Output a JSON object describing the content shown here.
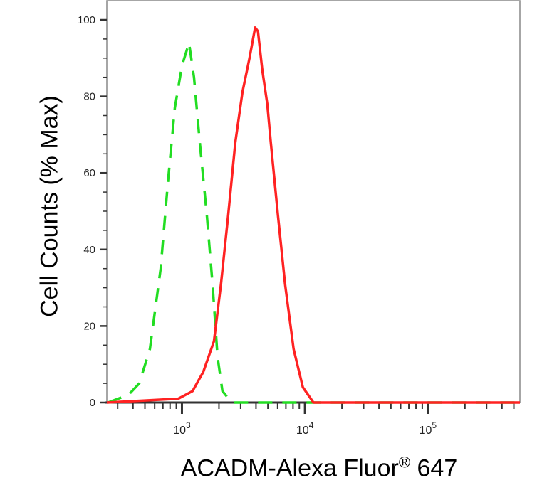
{
  "chart_data": {
    "type": "line",
    "title": "",
    "xlabel_main": "ACADM-Alexa Fluor",
    "xlabel_sup": "®",
    "xlabel_end": " 647",
    "ylabel": "Cell Counts (% Max)",
    "x_scale": "log",
    "xlim": [
      245,
      560000
    ],
    "ylim": [
      0,
      100
    ],
    "y_ticks": [
      0,
      20,
      40,
      60,
      80,
      100
    ],
    "x_ticks": [
      {
        "base": "10",
        "exp": "3",
        "value": 1000
      },
      {
        "base": "10",
        "exp": "4",
        "value": 10000
      },
      {
        "base": "10",
        "exp": "5",
        "value": 100000
      }
    ],
    "grid": false,
    "series": [
      {
        "style": "dashed",
        "color": "#22dd22",
        "x": [
          250,
          368,
          450,
          549,
          671,
          766,
          875,
          1000,
          1142,
          1254,
          1396,
          1593,
          1773,
          1947,
          2135,
          2540,
          6890,
          560000
        ],
        "y": [
          0,
          2,
          5,
          14,
          35,
          57,
          77,
          88,
          94,
          85,
          68,
          49,
          31,
          12,
          3,
          0,
          0,
          0
        ]
      },
      {
        "style": "solid",
        "color": "#ff2222",
        "x": [
          245,
          935,
          1221,
          1491,
          1820,
          2078,
          2376,
          2716,
          3100,
          3540,
          3937,
          4150,
          4496,
          4940,
          5280,
          6030,
          6890,
          8080,
          9620,
          11730,
          560000
        ],
        "y": [
          0,
          1,
          3,
          8,
          16,
          31,
          49,
          68,
          81,
          90,
          98,
          97,
          87,
          78,
          68,
          49,
          31,
          14,
          4,
          0,
          0
        ]
      }
    ]
  }
}
